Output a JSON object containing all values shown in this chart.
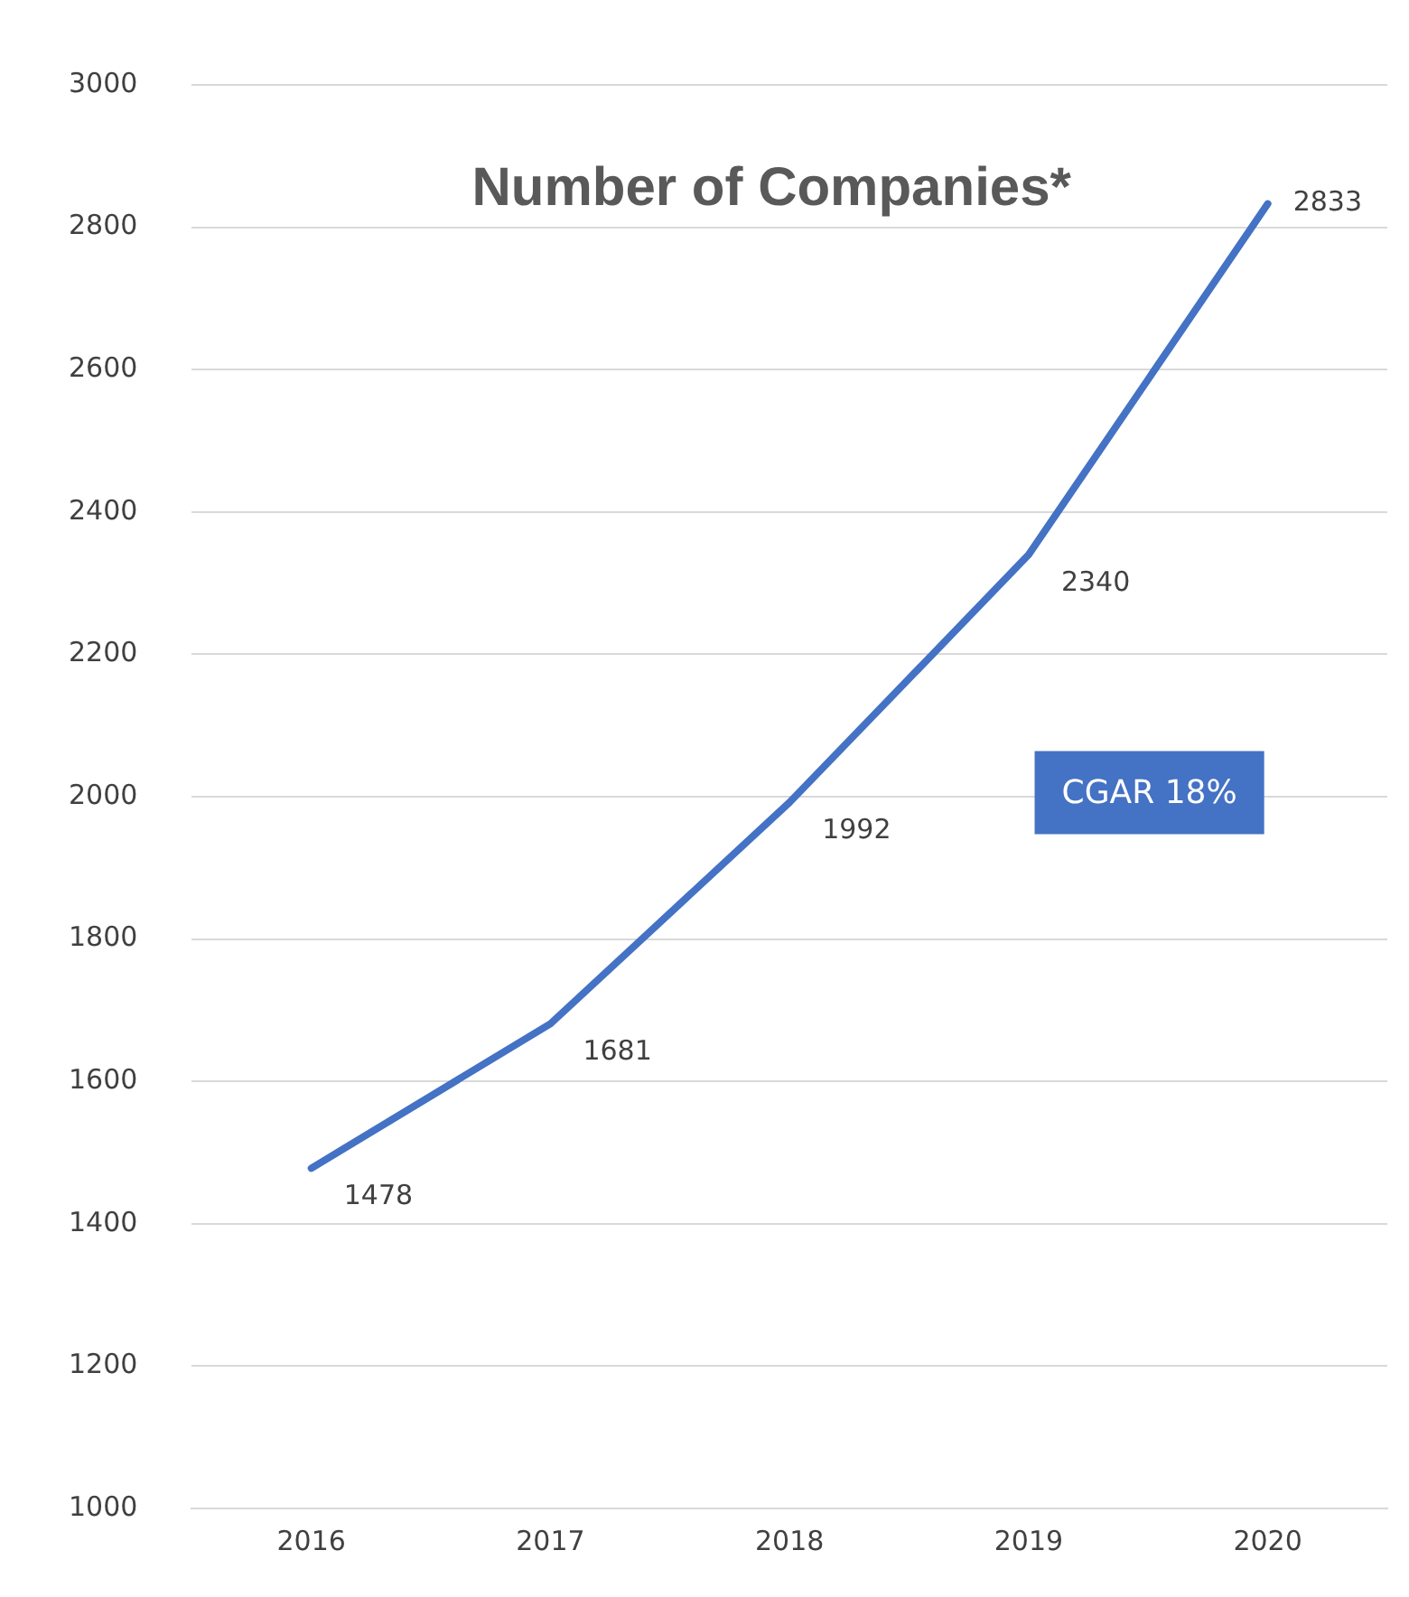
{
  "chart_data": {
    "type": "line",
    "title": "Number of Companies*",
    "categories": [
      "2016",
      "2017",
      "2018",
      "2019",
      "2020"
    ],
    "series": [
      {
        "color": "#4472c4",
        "values": [
          1478,
          1681,
          1992,
          2340,
          2833
        ]
      }
    ],
    "ylim": [
      1000,
      3000
    ],
    "yticks": [
      1000,
      1200,
      1400,
      1600,
      1800,
      2000,
      2200,
      2400,
      2600,
      2800,
      3000
    ],
    "grid": "y",
    "legend": false,
    "marker": "none",
    "line_style": "solid",
    "data_labels": true,
    "annotations": [
      "CGAR 18%"
    ]
  }
}
